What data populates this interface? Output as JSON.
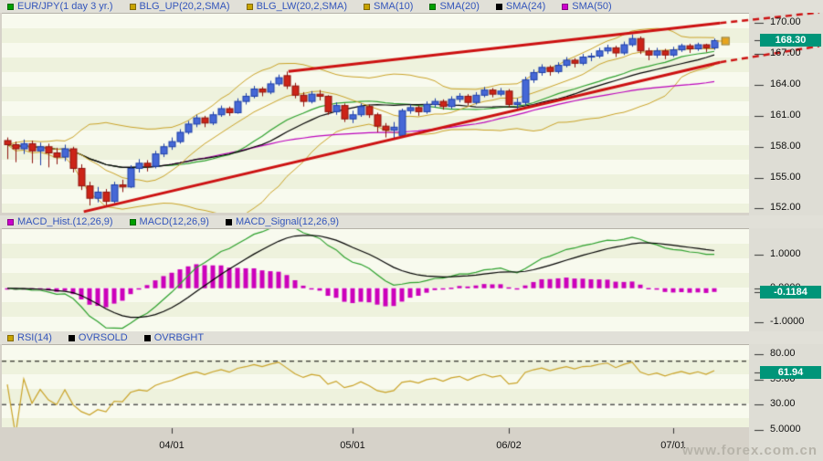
{
  "watermark": "www.forex.com.cn",
  "colors": {
    "up_candle": "#4668d6",
    "up_candle_border": "#1c3ea8",
    "down_candle": "#cc2418",
    "down_candle_border": "#8e120c",
    "bollinger": "#c9a227",
    "sma10": "#c9a227",
    "sma20": "#2ca02c",
    "sma24": "#000000",
    "sma50": "#bb00bb",
    "macd_line": "#2ca02c",
    "macd_signal": "#000000",
    "macd_hist": "#cc00bb",
    "rsi_line": "#c9a227",
    "threshold": "#000000",
    "trendline": "#cc1111",
    "tag_bg": "#009579",
    "tag_text": "#ffffff",
    "legend_text": "#3355bb",
    "marker": "#e8a41c"
  },
  "chart_data": [
    {
      "type": "candlestick",
      "title": "EUR/JPY(1 day 3 yr.)",
      "legend": [
        {
          "label": "EUR/JPY(1 day  3 yr.)",
          "color": "#00a000"
        },
        {
          "label": "BLG_UP(20,2,SMA)",
          "color": "#c8a400"
        },
        {
          "label": "BLG_LW(20,2,SMA)",
          "color": "#c8a400"
        },
        {
          "label": "SMA(10)",
          "color": "#c8a400"
        },
        {
          "label": "SMA(20)",
          "color": "#00a000"
        },
        {
          "label": "SMA(24)",
          "color": "#000000"
        },
        {
          "label": "SMA(50)",
          "color": "#cc00cc"
        }
      ],
      "y_ticks": [
        {
          "label": "170.00",
          "value": 170
        },
        {
          "label": "167.00",
          "value": 167
        },
        {
          "label": "164.00",
          "value": 164
        },
        {
          "label": "161.00",
          "value": 161
        },
        {
          "label": "158.00",
          "value": 158
        },
        {
          "label": "155.00",
          "value": 155
        },
        {
          "label": "152.00",
          "value": 152
        }
      ],
      "x_ticks": [
        {
          "label": "04/01",
          "bar": 20
        },
        {
          "label": "05/01",
          "bar": 42
        },
        {
          "label": "06/02",
          "bar": 61
        },
        {
          "label": "07/01",
          "bar": 81
        }
      ],
      "price_tag": {
        "label": "168.30",
        "value": 168.3
      },
      "ylim": [
        151.6,
        171.0
      ],
      "indicators": {
        "bollinger": {
          "period": 20,
          "deviation": 2,
          "ma": "SMA"
        },
        "sma_periods": [
          10,
          20,
          24,
          50
        ]
      },
      "trend_channel": {
        "upper": {
          "solid": [
            [
              34.2,
              165.3
            ],
            [
              86.7,
              170.0
            ]
          ],
          "dashed": [
            [
              86.7,
              170.0
            ],
            [
              99,
              171.05
            ]
          ]
        },
        "lower": {
          "solid": [
            [
              9.3,
              151.7
            ],
            [
              86.7,
              166.2
            ]
          ],
          "dashed": [
            [
              86.7,
              166.2
            ],
            [
              99,
              167.8
            ]
          ]
        }
      },
      "last_price_marker": {
        "bar": 87.3,
        "price": 168.3
      },
      "candles": [
        [
          158.6,
          158.9,
          156.8,
          158.2
        ],
        [
          158.2,
          158.5,
          156.5,
          157.8
        ],
        [
          157.8,
          158.7,
          157.3,
          158.3
        ],
        [
          158.3,
          158.6,
          156.4,
          157.6
        ],
        [
          157.6,
          158.4,
          156.2,
          158.0
        ],
        [
          158.0,
          158.3,
          156.0,
          157.4
        ],
        [
          157.4,
          157.9,
          156.3,
          157.0
        ],
        [
          157.0,
          158.2,
          156.6,
          157.8
        ],
        [
          157.8,
          158.0,
          155.5,
          155.9
        ],
        [
          155.9,
          156.3,
          153.8,
          154.2
        ],
        [
          154.2,
          154.6,
          152.3,
          153.0
        ],
        [
          153.0,
          154.1,
          152.6,
          153.6
        ],
        [
          153.6,
          153.9,
          152.2,
          152.7
        ],
        [
          152.7,
          154.6,
          152.5,
          154.3
        ],
        [
          154.3,
          154.8,
          153.6,
          154.1
        ],
        [
          154.1,
          156.2,
          154.0,
          155.9
        ],
        [
          155.9,
          156.8,
          155.5,
          156.4
        ],
        [
          156.4,
          156.7,
          155.6,
          156.1
        ],
        [
          156.1,
          157.6,
          155.9,
          157.3
        ],
        [
          157.3,
          158.3,
          157.0,
          158.0
        ],
        [
          158.0,
          158.9,
          157.7,
          158.5
        ],
        [
          158.5,
          159.7,
          158.3,
          159.4
        ],
        [
          159.4,
          160.5,
          159.2,
          160.2
        ],
        [
          160.2,
          161.1,
          159.9,
          160.8
        ],
        [
          160.8,
          161.0,
          159.9,
          160.3
        ],
        [
          160.3,
          161.4,
          160.1,
          161.1
        ],
        [
          161.1,
          162.0,
          160.9,
          161.7
        ],
        [
          161.7,
          161.9,
          161.0,
          161.3
        ],
        [
          161.3,
          162.7,
          161.2,
          162.4
        ],
        [
          162.4,
          163.2,
          162.1,
          162.9
        ],
        [
          162.9,
          163.9,
          162.7,
          163.6
        ],
        [
          163.6,
          163.8,
          162.9,
          163.3
        ],
        [
          163.3,
          164.4,
          163.1,
          164.1
        ],
        [
          164.1,
          165.0,
          163.9,
          164.7
        ],
        [
          164.9,
          165.3,
          163.6,
          163.9
        ],
        [
          163.9,
          164.2,
          162.7,
          163.0
        ],
        [
          163.0,
          163.3,
          161.9,
          162.4
        ],
        [
          162.4,
          163.4,
          162.2,
          163.1
        ],
        [
          163.1,
          163.5,
          162.5,
          162.9
        ],
        [
          162.9,
          163.0,
          161.1,
          161.4
        ],
        [
          161.4,
          162.3,
          161.1,
          162.0
        ],
        [
          162.0,
          162.2,
          160.4,
          160.7
        ],
        [
          160.7,
          161.5,
          160.3,
          161.1
        ],
        [
          161.1,
          162.2,
          160.9,
          161.9
        ],
        [
          161.9,
          162.1,
          160.8,
          161.1
        ],
        [
          161.1,
          161.3,
          159.4,
          160.0
        ],
        [
          160.0,
          160.3,
          158.9,
          159.6
        ],
        [
          159.6,
          160.4,
          158.8,
          159.9
        ],
        [
          159.1,
          161.7,
          158.9,
          161.5
        ],
        [
          161.5,
          162.1,
          161.2,
          161.8
        ],
        [
          161.8,
          162.0,
          161.0,
          161.4
        ],
        [
          161.4,
          162.4,
          161.2,
          162.1
        ],
        [
          162.1,
          162.7,
          161.8,
          162.4
        ],
        [
          162.4,
          162.6,
          161.6,
          161.9
        ],
        [
          161.9,
          162.9,
          161.7,
          162.6
        ],
        [
          162.6,
          163.2,
          162.3,
          162.9
        ],
        [
          162.9,
          163.1,
          162.0,
          162.3
        ],
        [
          162.3,
          163.3,
          162.1,
          163.0
        ],
        [
          163.0,
          163.8,
          162.8,
          163.5
        ],
        [
          163.5,
          163.7,
          162.8,
          163.1
        ],
        [
          163.1,
          163.7,
          162.9,
          163.4
        ],
        [
          163.4,
          163.6,
          161.8,
          162.1
        ],
        [
          162.1,
          162.7,
          161.7,
          162.3
        ],
        [
          162.3,
          164.8,
          162.0,
          164.5
        ],
        [
          164.5,
          165.5,
          164.2,
          165.2
        ],
        [
          165.2,
          166.0,
          164.9,
          165.7
        ],
        [
          165.7,
          165.9,
          164.9,
          165.3
        ],
        [
          165.3,
          166.2,
          165.1,
          165.9
        ],
        [
          165.9,
          166.7,
          165.7,
          166.4
        ],
        [
          166.4,
          166.6,
          165.7,
          166.1
        ],
        [
          166.1,
          167.0,
          165.9,
          166.7
        ],
        [
          166.7,
          167.1,
          166.3,
          166.8
        ],
        [
          166.8,
          167.6,
          166.6,
          167.3
        ],
        [
          167.3,
          167.9,
          167.0,
          167.6
        ],
        [
          167.6,
          167.8,
          166.7,
          167.1
        ],
        [
          167.1,
          168.2,
          166.9,
          167.9
        ],
        [
          167.9,
          168.9,
          167.7,
          168.5
        ],
        [
          168.5,
          168.7,
          167.0,
          167.3
        ],
        [
          167.3,
          167.6,
          166.4,
          166.9
        ],
        [
          166.9,
          167.6,
          166.6,
          167.3
        ],
        [
          167.3,
          167.5,
          166.5,
          166.9
        ],
        [
          166.9,
          167.7,
          166.7,
          167.4
        ],
        [
          167.4,
          168.0,
          167.2,
          167.8
        ],
        [
          167.8,
          168.0,
          167.1,
          167.5
        ],
        [
          167.5,
          168.1,
          167.3,
          167.9
        ],
        [
          167.9,
          168.0,
          167.2,
          167.6
        ],
        [
          167.6,
          168.5,
          167.4,
          168.3
        ]
      ]
    },
    {
      "type": "macd",
      "params": [
        12,
        26,
        9
      ],
      "legend": [
        {
          "label": "MACD_Hist.(12,26,9)",
          "color": "#cc00cc"
        },
        {
          "label": "MACD(12,26,9)",
          "color": "#00a000"
        },
        {
          "label": "MACD_Signal(12,26,9)",
          "color": "#000000"
        }
      ],
      "y_ticks": [
        {
          "label": "1.0000",
          "value": 1
        },
        {
          "label": "0.0000",
          "value": 0
        },
        {
          "label": "-1.0000",
          "value": -1
        }
      ],
      "tag": {
        "label": "-0.1184",
        "value": -0.1184
      },
      "ylim": [
        -1.28,
        1.78
      ]
    },
    {
      "type": "rsi",
      "period": 14,
      "legend": [
        {
          "label": "RSI(14)",
          "color": "#c8a400"
        },
        {
          "label": "OVRSOLD",
          "color": "#000000"
        },
        {
          "label": "OVRBGHT",
          "color": "#000000"
        }
      ],
      "y_ticks": [
        {
          "label": "80.00",
          "value": 80
        },
        {
          "label": "55.00",
          "value": 55
        },
        {
          "label": "30.00",
          "value": 30
        },
        {
          "label": "5.0000",
          "value": 5
        }
      ],
      "tag": {
        "label": "61.94",
        "value": 61.94
      },
      "overbought_line": 73,
      "oversold_line": 30,
      "ylim": [
        7.5,
        90
      ]
    }
  ]
}
